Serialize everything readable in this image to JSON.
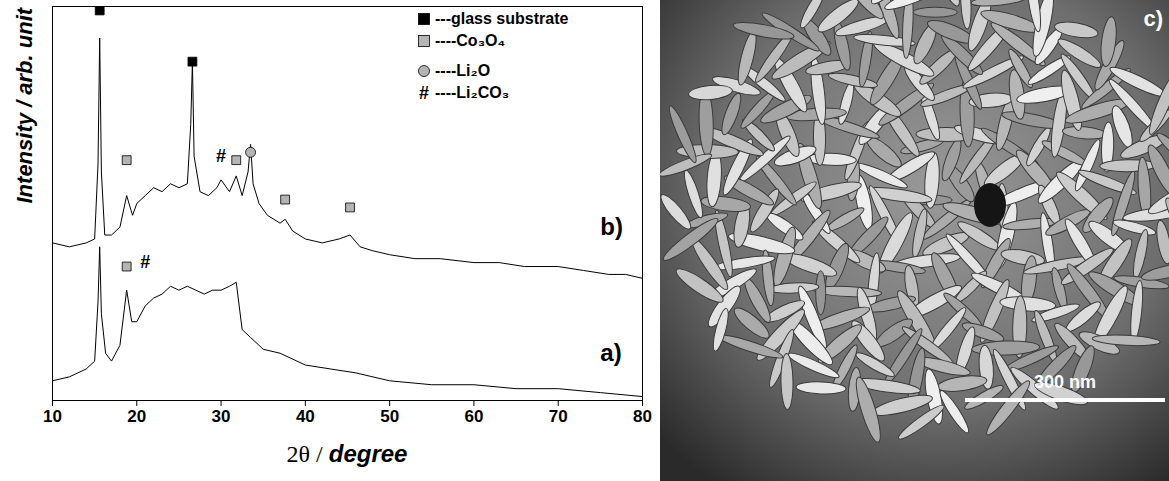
{
  "chart_data": {
    "type": "line",
    "x_label": "2θ / degree",
    "y_label": "Intensity / arb. unit",
    "xlim": [
      10,
      80
    ],
    "xticks": [
      10,
      20,
      30,
      40,
      50,
      60,
      70,
      80
    ],
    "ylim": [
      0,
      100
    ],
    "tick_labels": "x",
    "legend": "top-right",
    "series": [
      {
        "name": "b)",
        "color": "#000000",
        "x": [
          10,
          12,
          14,
          15,
          15.4,
          15.6,
          15.8,
          16.2,
          17,
          18,
          18.8,
          19.5,
          20,
          21,
          22,
          23,
          24,
          25,
          26,
          26.4,
          26.6,
          26.8,
          27.5,
          28.5,
          29.5,
          30,
          31,
          31.8,
          32.5,
          33.2,
          33.5,
          33.8,
          34.5,
          35.5,
          37,
          37.6,
          38.5,
          40,
          42,
          44,
          45.3,
          46.5,
          48,
          50,
          53,
          56,
          60,
          63,
          66,
          70,
          73,
          76,
          78,
          80
        ],
        "values": [
          40,
          39,
          40,
          41,
          60,
          92,
          58,
          42,
          42,
          44,
          52,
          47,
          50,
          52,
          54,
          53,
          55,
          54,
          55,
          70,
          86,
          62,
          53,
          52,
          54,
          56,
          53,
          57,
          52,
          58,
          65,
          55,
          50,
          47,
          45,
          46,
          43,
          41,
          40,
          41,
          42,
          39,
          38,
          37,
          36,
          36,
          35,
          35,
          34,
          34,
          33,
          32,
          32,
          31
        ]
      },
      {
        "name": "a)",
        "color": "#000000",
        "x": [
          10,
          12,
          14,
          15,
          15.4,
          15.6,
          15.8,
          16.3,
          17,
          18,
          18.8,
          19.4,
          20,
          21,
          22,
          23,
          24,
          25,
          26,
          27,
          28,
          29,
          30,
          31,
          31.8,
          32.5,
          33.5,
          35,
          37,
          40,
          43,
          46,
          50,
          55,
          60,
          65,
          70,
          75,
          80
        ],
        "values": [
          5,
          6,
          8,
          10,
          25,
          39,
          22,
          12,
          10,
          14,
          28,
          20,
          20,
          24,
          26,
          27,
          29,
          28,
          29,
          28,
          27,
          28,
          28,
          29,
          30,
          18,
          16,
          13,
          12,
          9,
          8,
          7,
          5,
          4,
          4,
          3,
          3,
          2,
          1
        ]
      }
    ],
    "annotations": [
      {
        "x": 75,
        "y": 44,
        "text": "b)"
      },
      {
        "x": 75,
        "y": 12,
        "text": "a)"
      }
    ],
    "markers": [
      {
        "x": 15.6,
        "y": 99,
        "marker": "square",
        "color": "#000000"
      },
      {
        "x": 26.6,
        "y": 86,
        "marker": "square",
        "color": "#000000"
      },
      {
        "x": 18.8,
        "y": 61,
        "marker": "square",
        "color": "#b4b4b4"
      },
      {
        "x": 31.8,
        "y": 61,
        "marker": "square",
        "color": "#b4b4b4"
      },
      {
        "x": 37.6,
        "y": 51,
        "marker": "square",
        "color": "#b4b4b4"
      },
      {
        "x": 45.3,
        "y": 49,
        "marker": "square",
        "color": "#b4b4b4"
      },
      {
        "x": 30,
        "y": 62,
        "symbol": "#"
      },
      {
        "x": 33.5,
        "y": 63,
        "marker": "circle",
        "color": "#b4b4b4"
      },
      {
        "x": 18.8,
        "y": 34,
        "marker": "square",
        "color": "#b4b4b4"
      },
      {
        "x": 21,
        "y": 35,
        "symbol": "#"
      }
    ],
    "legend_items": [
      {
        "label": "---glass substrate",
        "marker": "square",
        "color": "#000000"
      },
      {
        "label": "----Co₃O₄",
        "marker": "square",
        "color": "#b4b4b4"
      },
      {
        "label": "----Li₂O",
        "marker": "circle",
        "color": "#b4b4b4"
      },
      {
        "label": "----Li₂CO₃",
        "symbol": "#"
      }
    ]
  },
  "image": {
    "label": "c)",
    "scale_bar": "300 nm"
  }
}
